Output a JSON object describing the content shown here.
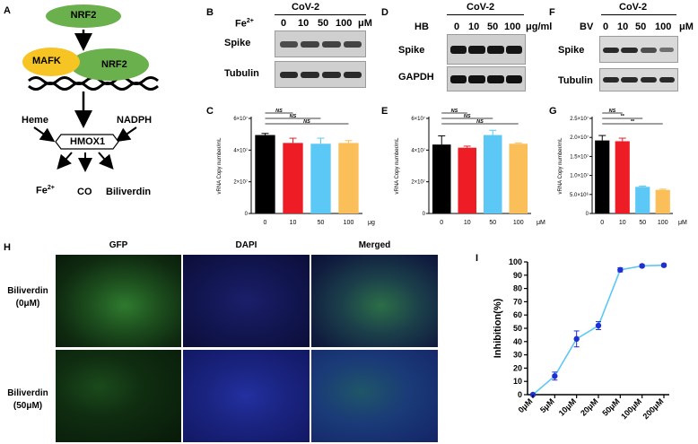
{
  "panels": {
    "A": "A",
    "B": "B",
    "C": "C",
    "D": "D",
    "E": "E",
    "F": "F",
    "G": "G",
    "H": "H",
    "I": "I"
  },
  "pathway": {
    "nrf2_top": "NRF2",
    "mafk": "MAFK",
    "nrf2_bound": "NRF2",
    "heme": "Heme",
    "nadph": "NADPH",
    "hmox1": "HMOX1",
    "fe": "Fe",
    "fe_sup": "2+",
    "co": "CO",
    "biliverdin": "Biliverdin",
    "colors": {
      "nrf2": "#6ab04c",
      "mafk": "#f6c523"
    }
  },
  "blots": [
    {
      "title": "CoV-2",
      "treatment": "Fe",
      "treatment_sup": "2+",
      "doses": [
        "0",
        "10",
        "50",
        "100"
      ],
      "unit": "μM",
      "rows": [
        "Spike",
        "Tubulin"
      ]
    },
    {
      "title": "CoV-2",
      "treatment": "HB",
      "treatment_sup": "",
      "doses": [
        "0",
        "10",
        "50",
        "100"
      ],
      "unit": "μg/ml",
      "rows": [
        "Spike",
        "GAPDH"
      ]
    },
    {
      "title": "CoV-2",
      "treatment": "BV",
      "treatment_sup": "",
      "doses": [
        "0",
        "10",
        "50",
        "100"
      ],
      "unit": "μM",
      "rows": [
        "Spike",
        "Tubulin"
      ]
    }
  ],
  "chart_data": [
    {
      "panel": "C",
      "type": "bar",
      "ylabel": "vRNA Copy number/mL",
      "categories": [
        "0",
        "10",
        "50",
        "100"
      ],
      "x_unit": "μg",
      "values": [
        49500000.0,
        44500000.0,
        44000000.0,
        44500000.0
      ],
      "errors": [
        1000000.0,
        3000000.0,
        3500000.0,
        1500000.0
      ],
      "ylim": [
        0,
        60000000.0
      ],
      "yticks": [
        {
          "v": 0,
          "label": "0"
        },
        {
          "v": 20000000.0,
          "label": "2×10⁷"
        },
        {
          "v": 40000000.0,
          "label": "4×10⁷"
        },
        {
          "v": 60000000.0,
          "label": "6×10⁷"
        }
      ],
      "bar_colors": [
        "#000000",
        "#ee1c25",
        "#5bc8f5",
        "#fbbf5a"
      ],
      "significance": [
        {
          "from": 0,
          "to": 1,
          "label": "NS"
        },
        {
          "from": 0,
          "to": 2,
          "label": "NS"
        },
        {
          "from": 0,
          "to": 3,
          "label": "NS"
        }
      ]
    },
    {
      "panel": "E",
      "type": "bar",
      "ylabel": "vRNA Copy number/mL",
      "categories": [
        "0",
        "10",
        "50",
        "100"
      ],
      "x_unit": "μM",
      "values": [
        43500000.0,
        41500000.0,
        49500000.0,
        44000000.0
      ],
      "errors": [
        5500000.0,
        1000000.0,
        3000000.0,
        500000.0
      ],
      "ylim": [
        0,
        60000000.0
      ],
      "yticks": [
        {
          "v": 0,
          "label": "0"
        },
        {
          "v": 20000000.0,
          "label": "2×10⁷"
        },
        {
          "v": 40000000.0,
          "label": "4×10⁷"
        },
        {
          "v": 60000000.0,
          "label": "6×10⁷"
        }
      ],
      "bar_colors": [
        "#000000",
        "#ee1c25",
        "#5bc8f5",
        "#fbbf5a"
      ],
      "significance": [
        {
          "from": 0,
          "to": 1,
          "label": "NS"
        },
        {
          "from": 0,
          "to": 2,
          "label": "NS"
        },
        {
          "from": 0,
          "to": 3,
          "label": "NS"
        }
      ]
    },
    {
      "panel": "G",
      "type": "bar",
      "ylabel": "vRNA Copy number/mL",
      "categories": [
        "0",
        "10",
        "50",
        "100"
      ],
      "x_unit": "μM",
      "values": [
        19200000.0,
        19000000.0,
        7000000.0,
        6200000.0
      ],
      "errors": [
        1300000.0,
        800000.0,
        200000.0,
        200000.0
      ],
      "ylim": [
        0,
        25000000.0
      ],
      "yticks": [
        {
          "v": 0,
          "label": "0"
        },
        {
          "v": 5000000.0,
          "label": "5.0×10⁶"
        },
        {
          "v": 10000000.0,
          "label": "1.0×10⁷"
        },
        {
          "v": 15000000.0,
          "label": "1.5×10⁷"
        },
        {
          "v": 20000000.0,
          "label": "2.0×10⁷"
        },
        {
          "v": 25000000.0,
          "label": "2.5×10⁷"
        }
      ],
      "bar_colors": [
        "#000000",
        "#ee1c25",
        "#5bc8f5",
        "#fbbf5a"
      ],
      "significance": [
        {
          "from": 0,
          "to": 1,
          "label": "NS"
        },
        {
          "from": 0,
          "to": 2,
          "label": "**"
        },
        {
          "from": 0,
          "to": 3,
          "label": "**"
        }
      ]
    },
    {
      "panel": "I",
      "type": "line",
      "ylabel": "Inhibition(%)",
      "categories": [
        "0μM",
        "5μM",
        "10μM",
        "20μM",
        "50μM",
        "100μM",
        "200μM"
      ],
      "values": [
        0,
        14,
        42,
        52,
        94,
        97,
        97.5
      ],
      "errors": [
        0,
        3,
        6,
        3,
        1.5,
        1,
        1
      ],
      "ylim": [
        0,
        100
      ],
      "yticks": [
        0,
        10,
        20,
        30,
        40,
        50,
        60,
        70,
        80,
        90,
        100
      ],
      "line_color": "#5bc8f5",
      "marker_color": "#1f2fd0"
    }
  ],
  "microscopy": {
    "columns": [
      "GFP",
      "DAPI",
      "Merged"
    ],
    "rows": [
      {
        "label": "Biliverdin",
        "sub": "(0μM)"
      },
      {
        "label": "Biliverdin",
        "sub": "(50μM)"
      }
    ]
  }
}
